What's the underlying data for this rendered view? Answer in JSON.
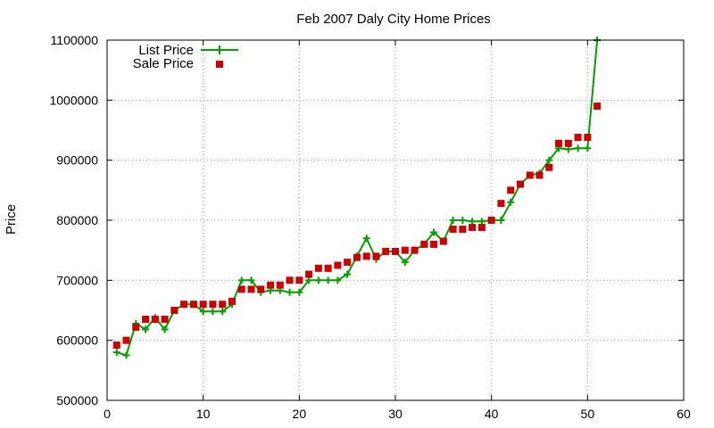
{
  "chart_data": {
    "type": "line",
    "title": "Feb 2007 Daly City Home Prices",
    "xlabel": "",
    "ylabel": "Price",
    "xlim": [
      0,
      60
    ],
    "ylim": [
      500000,
      1100000
    ],
    "x_ticks": [
      0,
      10,
      20,
      30,
      40,
      50,
      60
    ],
    "y_ticks": [
      500000,
      600000,
      700000,
      800000,
      900000,
      1000000,
      1100000
    ],
    "x_tick_labels": [
      "0",
      "10",
      "20",
      "30",
      "40",
      "50",
      "60"
    ],
    "y_tick_labels": [
      "500000",
      "600000",
      "700000",
      "800000",
      "900000",
      "1000000",
      "1100000"
    ],
    "grid": true,
    "legend_position": "top-left",
    "series": [
      {
        "name": "List Price",
        "style": "line-plus",
        "color": "#00a000",
        "x": [
          1,
          2,
          3,
          4,
          5,
          6,
          7,
          8,
          9,
          10,
          11,
          12,
          13,
          14,
          15,
          16,
          17,
          18,
          19,
          20,
          21,
          22,
          23,
          24,
          25,
          26,
          27,
          28,
          29,
          30,
          31,
          32,
          33,
          34,
          35,
          36,
          37,
          38,
          39,
          40,
          41,
          42,
          43,
          44,
          45,
          46,
          47,
          48,
          49,
          50,
          51
        ],
        "values": [
          580000,
          575000,
          628000,
          618000,
          638000,
          618000,
          650000,
          660000,
          660000,
          648000,
          648000,
          648000,
          660000,
          700000,
          700000,
          680000,
          683000,
          683000,
          680000,
          680000,
          700000,
          700000,
          700000,
          700000,
          710000,
          740000,
          770000,
          735000,
          748000,
          748000,
          730000,
          750000,
          760000,
          780000,
          765000,
          800000,
          800000,
          798000,
          798000,
          800000,
          800000,
          830000,
          860000,
          875000,
          878000,
          900000,
          920000,
          918000,
          920000,
          920000,
          1100000
        ]
      },
      {
        "name": "Sale Price",
        "style": "square-markers",
        "color": "#cc0000",
        "x": [
          1,
          2,
          3,
          4,
          5,
          6,
          7,
          8,
          9,
          10,
          11,
          12,
          13,
          14,
          15,
          16,
          17,
          18,
          19,
          20,
          21,
          22,
          23,
          24,
          25,
          26,
          27,
          28,
          29,
          30,
          31,
          32,
          33,
          34,
          35,
          36,
          37,
          38,
          39,
          40,
          41,
          42,
          43,
          44,
          45,
          46,
          47,
          48,
          49,
          50,
          51
        ],
        "values": [
          592000,
          600000,
          622000,
          635000,
          635000,
          635000,
          650000,
          660000,
          660000,
          660000,
          660000,
          660000,
          665000,
          685000,
          685000,
          685000,
          692000,
          692000,
          700000,
          700000,
          710000,
          720000,
          720000,
          725000,
          730000,
          738000,
          740000,
          740000,
          748000,
          748000,
          750000,
          750000,
          760000,
          760000,
          765000,
          785000,
          785000,
          788000,
          788000,
          800000,
          828000,
          850000,
          860000,
          875000,
          875000,
          888000,
          928000,
          928000,
          938000,
          938000,
          990000
        ]
      }
    ]
  }
}
